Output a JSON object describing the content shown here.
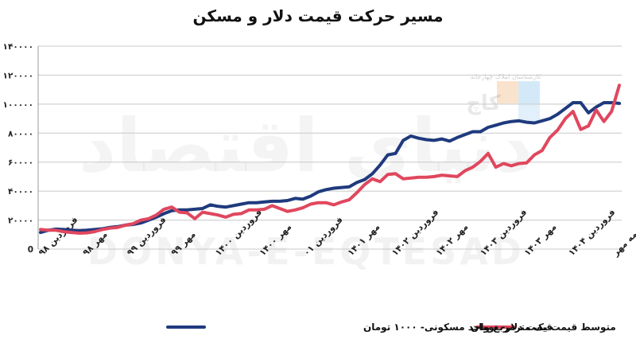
{
  "title": "مسیر حرکت قیمت دلار و مسکن",
  "chart_data": {
    "type": "line",
    "title": "مسیر حرکت قیمت دلار و مسکن",
    "ylim": [
      0,
      140000
    ],
    "y_ticks": [
      0,
      20000,
      40000,
      60000,
      80000,
      100000,
      120000,
      140000
    ],
    "y_tick_labels": [
      "0",
      "۲۰۰۰۰",
      "۴۰۰۰۰",
      "۶۰۰۰۰",
      "۸۰۰۰۰",
      "۱۰۰۰۰۰",
      "۱۲۰۰۰۰",
      "۱۴۰۰۰۰"
    ],
    "x_tick_labels": [
      "فروردین ۹۸",
      "مهر ۹۸",
      "فروردین ۹۹",
      "مهر ۹۹",
      "فروردین ۱۴۰۰",
      "مهر ۱۴۰۰",
      "فروردین ۰۱",
      "مهر ۱۴۰۱",
      "فروردین ۱۴۰۲",
      "مهر ۱۴۰۲",
      "فروردین ۱۴۰۳",
      "مهر ۱۴۰۳",
      "فروردین ۱۴۰۴",
      "نیمه مهر"
    ],
    "grid": "horizontal",
    "legend": "bottom",
    "series": [
      {
        "name": "متوسط قیمت یک مترمربع واحد مسکونی- ۱۰۰۰ تومان",
        "color": "#1f3a7e",
        "values": [
          11500,
          13000,
          13800,
          13500,
          13000,
          12800,
          13000,
          13500,
          14000,
          15000,
          15500,
          16500,
          17000,
          18000,
          20000,
          22000,
          24500,
          26500,
          27000,
          27000,
          27500,
          28000,
          30500,
          29500,
          29000,
          30000,
          31000,
          32000,
          32000,
          32500,
          33000,
          33000,
          33500,
          35000,
          34500,
          36500,
          39500,
          41000,
          42000,
          42500,
          43000,
          46000,
          48000,
          52000,
          58000,
          65000,
          66000,
          75000,
          78000,
          76500,
          75500,
          75000,
          76000,
          74500,
          77000,
          79000,
          81000,
          81000,
          84000,
          85500,
          87000,
          88000,
          88500,
          87500,
          87000,
          88500,
          90000,
          93000,
          97000,
          101000,
          101000,
          94000,
          98000,
          101000,
          101000,
          100500
        ]
      },
      {
        "name": "قیمت دلار- تومان",
        "color": "#e0475e",
        "values": [
          13500,
          13000,
          13000,
          12000,
          11500,
          11000,
          11200,
          12000,
          13500,
          14500,
          15000,
          16500,
          17500,
          20000,
          21000,
          23500,
          27500,
          29000,
          25500,
          25000,
          21000,
          25500,
          24500,
          23500,
          22000,
          24000,
          24500,
          27000,
          27000,
          27500,
          30000,
          28000,
          26000,
          27000,
          28500,
          31000,
          32000,
          32000,
          30500,
          32500,
          34000,
          39000,
          44500,
          48500,
          46500,
          51500,
          52000,
          48500,
          49000,
          49500,
          49500,
          50000,
          51000,
          50500,
          50000,
          54000,
          56500,
          60500,
          66000,
          56500,
          59000,
          57500,
          59000,
          59500,
          65000,
          68000,
          77000,
          82000,
          90000,
          95000,
          82500,
          85000,
          96000,
          88000,
          95000,
          113000
        ]
      }
    ]
  },
  "watermark": {
    "brand_latin": "DONYA-E-EQTESAD",
    "brand_persian": "دنیای اقتصاد",
    "logo_text": "کاچ",
    "logo_caption": "کارشناسان املاک چهارخانه"
  }
}
